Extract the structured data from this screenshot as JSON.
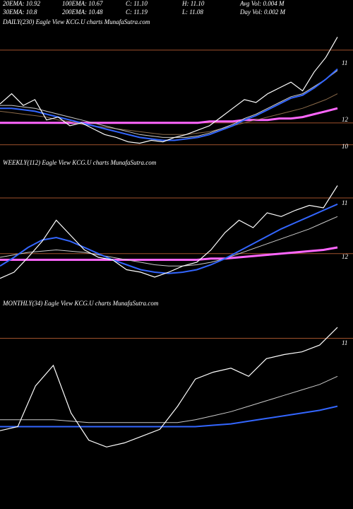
{
  "header": {
    "rows": [
      [
        "20EMA: 10.92",
        "100EMA: 10.67",
        "C: 11.10",
        "H: 11.10",
        "Avg Vol: 0.004 M"
      ],
      [
        "30EMA: 10.8",
        "200EMA: 10.48",
        "C: 11.19",
        "L: 11.08",
        "Day Vol: 0.002 M"
      ]
    ]
  },
  "chart_data": [
    {
      "type": "line",
      "title": "DAILY(230) Eagle  View  KCG.U charts MunafaSutra.com",
      "right_labels": [
        "11",
        "12",
        "10"
      ],
      "ylim": [
        10.4,
        11.25
      ],
      "categories": [
        null,
        null,
        null,
        null,
        null,
        null,
        null,
        null,
        null,
        null,
        null,
        null,
        null,
        null,
        null,
        null,
        null,
        null,
        null,
        null,
        null,
        null,
        null,
        null,
        null,
        null,
        null,
        null,
        null,
        null
      ],
      "hlines": [
        {
          "value": 11.1,
          "color": "#a0522d"
        },
        {
          "value": 10.6,
          "color": "#a0522d"
        },
        {
          "value": 10.45,
          "color": "#a0522d"
        }
      ],
      "series": [
        {
          "color": "#ff66ff",
          "width": 3,
          "values": [
            10.6,
            10.6,
            10.6,
            10.6,
            10.6,
            10.6,
            10.6,
            10.6,
            10.6,
            10.6,
            10.6,
            10.6,
            10.6,
            10.6,
            10.6,
            10.6,
            10.6,
            10.6,
            10.61,
            10.61,
            10.61,
            10.62,
            10.62,
            10.62,
            10.63,
            10.63,
            10.64,
            10.66,
            10.68,
            10.7
          ]
        },
        {
          "color": "#8b6b4a",
          "width": 1,
          "values": [
            10.68,
            10.67,
            10.66,
            10.65,
            10.64,
            10.62,
            10.61,
            10.59,
            10.58,
            10.57,
            10.56,
            10.55,
            10.54,
            10.53,
            10.52,
            10.52,
            10.52,
            10.53,
            10.54,
            10.56,
            10.58,
            10.6,
            10.62,
            10.64,
            10.66,
            10.68,
            10.7,
            10.73,
            10.76,
            10.8
          ]
        },
        {
          "color": "#cccccc",
          "width": 1,
          "values": [
            10.72,
            10.72,
            10.71,
            10.7,
            10.68,
            10.66,
            10.64,
            10.62,
            10.6,
            10.58,
            10.56,
            10.54,
            10.52,
            10.51,
            10.5,
            10.5,
            10.5,
            10.51,
            10.53,
            10.56,
            10.59,
            10.63,
            10.66,
            10.7,
            10.74,
            10.78,
            10.8,
            10.85,
            10.9,
            10.96
          ]
        },
        {
          "color": "#3366ff",
          "width": 2,
          "values": [
            10.7,
            10.7,
            10.69,
            10.68,
            10.66,
            10.64,
            10.62,
            10.6,
            10.58,
            10.56,
            10.54,
            10.52,
            10.5,
            10.49,
            10.48,
            10.48,
            10.49,
            10.5,
            10.52,
            10.55,
            10.58,
            10.62,
            10.65,
            10.69,
            10.73,
            10.77,
            10.79,
            10.84,
            10.9,
            10.97
          ]
        },
        {
          "color": "#ffffff",
          "width": 1.2,
          "values": [
            10.73,
            10.8,
            10.72,
            10.76,
            10.62,
            10.64,
            10.58,
            10.6,
            10.56,
            10.52,
            10.5,
            10.47,
            10.46,
            10.48,
            10.47,
            10.5,
            10.52,
            10.55,
            10.58,
            10.64,
            10.7,
            10.76,
            10.74,
            10.8,
            10.84,
            10.88,
            10.82,
            10.95,
            11.05,
            11.19
          ]
        }
      ]
    },
    {
      "type": "line",
      "title": "WEEKLY(112) Eagle  View  KCG.U charts MunafaSutra.com",
      "right_labels": [
        "11",
        "12"
      ],
      "ylim": [
        10.3,
        11.3
      ],
      "categories": [
        null,
        null,
        null,
        null,
        null,
        null,
        null,
        null,
        null,
        null,
        null,
        null,
        null,
        null,
        null,
        null,
        null,
        null,
        null,
        null,
        null,
        null,
        null,
        null,
        null
      ],
      "hlines": [
        {
          "value": 11.1,
          "color": "#a0522d"
        },
        {
          "value": 10.65,
          "color": "#a0522d"
        }
      ],
      "series": [
        {
          "color": "#ff66ff",
          "width": 3,
          "values": [
            10.6,
            10.6,
            10.6,
            10.6,
            10.6,
            10.6,
            10.6,
            10.6,
            10.6,
            10.6,
            10.6,
            10.6,
            10.6,
            10.6,
            10.6,
            10.61,
            10.61,
            10.62,
            10.63,
            10.64,
            10.65,
            10.66,
            10.67,
            10.68,
            10.7
          ]
        },
        {
          "color": "#cccccc",
          "width": 1,
          "values": [
            10.62,
            10.64,
            10.66,
            10.67,
            10.68,
            10.67,
            10.66,
            10.64,
            10.62,
            10.6,
            10.58,
            10.56,
            10.55,
            10.55,
            10.56,
            10.58,
            10.61,
            10.65,
            10.69,
            10.73,
            10.77,
            10.81,
            10.85,
            10.9,
            10.95
          ]
        },
        {
          "color": "#3366ff",
          "width": 2,
          "values": [
            10.55,
            10.62,
            10.7,
            10.76,
            10.78,
            10.75,
            10.7,
            10.65,
            10.6,
            10.56,
            10.52,
            10.5,
            10.49,
            10.5,
            10.52,
            10.56,
            10.61,
            10.67,
            10.73,
            10.79,
            10.85,
            10.9,
            10.95,
            11.0,
            11.05
          ]
        },
        {
          "color": "#ffffff",
          "width": 1.2,
          "values": [
            10.45,
            10.5,
            10.62,
            10.75,
            10.92,
            10.8,
            10.68,
            10.62,
            10.6,
            10.52,
            10.5,
            10.46,
            10.5,
            10.55,
            10.58,
            10.68,
            10.82,
            10.92,
            10.86,
            10.98,
            10.95,
            11.0,
            11.04,
            11.02,
            11.2
          ]
        }
      ]
    },
    {
      "type": "line",
      "title": "MONTHLY(34) Eagle  View  KCG.U charts MunafaSutra.com",
      "right_labels": [
        "11"
      ],
      "ylim": [
        10.0,
        11.3
      ],
      "categories": [
        null,
        null,
        null,
        null,
        null,
        null,
        null,
        null,
        null,
        null,
        null,
        null,
        null,
        null,
        null,
        null,
        null,
        null,
        null,
        null
      ],
      "hlines": [
        {
          "value": 11.1,
          "color": "#a0522d"
        }
      ],
      "series": [
        {
          "color": "#cccccc",
          "width": 1,
          "values": [
            10.5,
            10.5,
            10.5,
            10.5,
            10.49,
            10.48,
            10.48,
            10.48,
            10.48,
            10.48,
            10.48,
            10.5,
            10.53,
            10.56,
            10.6,
            10.64,
            10.68,
            10.72,
            10.76,
            10.82
          ]
        },
        {
          "color": "#3366ff",
          "width": 2,
          "values": [
            10.45,
            10.45,
            10.45,
            10.45,
            10.45,
            10.45,
            10.45,
            10.45,
            10.45,
            10.45,
            10.45,
            10.45,
            10.46,
            10.47,
            10.49,
            10.51,
            10.53,
            10.55,
            10.57,
            10.6
          ]
        },
        {
          "color": "#ffffff",
          "width": 1.2,
          "values": [
            10.42,
            10.45,
            10.75,
            10.9,
            10.55,
            10.35,
            10.3,
            10.33,
            10.38,
            10.43,
            10.6,
            10.8,
            10.85,
            10.88,
            10.82,
            10.95,
            10.98,
            11.0,
            11.05,
            11.18
          ]
        }
      ]
    }
  ]
}
